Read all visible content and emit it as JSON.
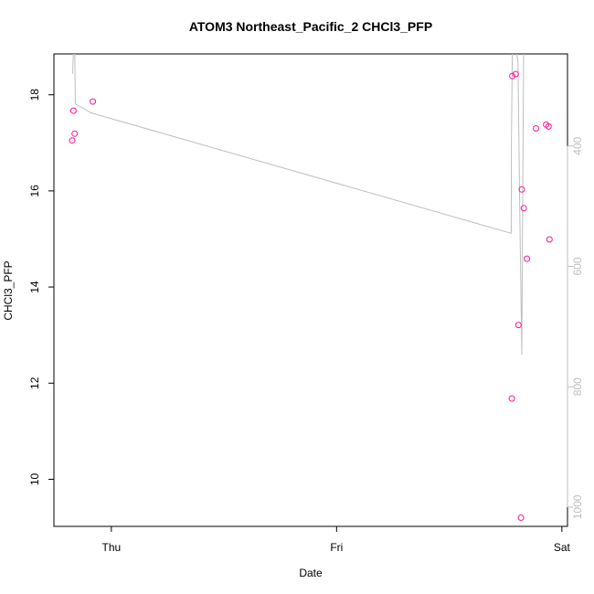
{
  "chart_data": {
    "type": "scatter",
    "title": "ATOM3 Northeast_Pacific_2 CHCl3_PFP",
    "xlabel": "Date",
    "ylabel": "CHCl3_PFP",
    "x_ticks": [
      {
        "label": "Thu",
        "day": 0
      },
      {
        "label": "Fri",
        "day": 1
      },
      {
        "label": "Sat",
        "day": 2
      }
    ],
    "xlim_days": [
      -0.255,
      2.025
    ],
    "ylim": [
      9.02,
      18.85
    ],
    "y_ticks": [
      10,
      12,
      14,
      16,
      18
    ],
    "right_axis": {
      "ticks": [
        400,
        600,
        800,
        1000
      ],
      "lim": [
        247,
        1032
      ],
      "reversed": true,
      "color": "#bebebe"
    },
    "grid": false,
    "series": [
      {
        "type": "scatter",
        "color": "#ff1493",
        "x_days": [
          -0.174,
          -0.168,
          -0.163,
          -0.082,
          1.778,
          1.78,
          1.795,
          1.807,
          1.818,
          1.822,
          1.831,
          1.845,
          1.885,
          1.93,
          1.941,
          1.945
        ],
        "y": [
          17.05,
          17.67,
          17.19,
          17.86,
          11.68,
          18.39,
          18.43,
          13.21,
          9.2,
          16.03,
          15.64,
          14.59,
          17.3,
          17.38,
          17.34,
          14.99
        ]
      },
      {
        "type": "line",
        "color": "#bebebe",
        "axis": "right",
        "x_days": [
          -0.172,
          -0.171,
          -0.169,
          -0.168,
          -0.165,
          -0.16,
          -0.09,
          1.775,
          1.776,
          1.781,
          1.79,
          1.805,
          1.813,
          1.822,
          1.826,
          1.831,
          1.845
        ],
        "y": [
          280,
          270,
          250,
          200,
          150,
          330,
          345,
          545,
          400,
          200,
          220,
          260,
          500,
          747,
          500,
          200,
          150
        ]
      }
    ]
  }
}
